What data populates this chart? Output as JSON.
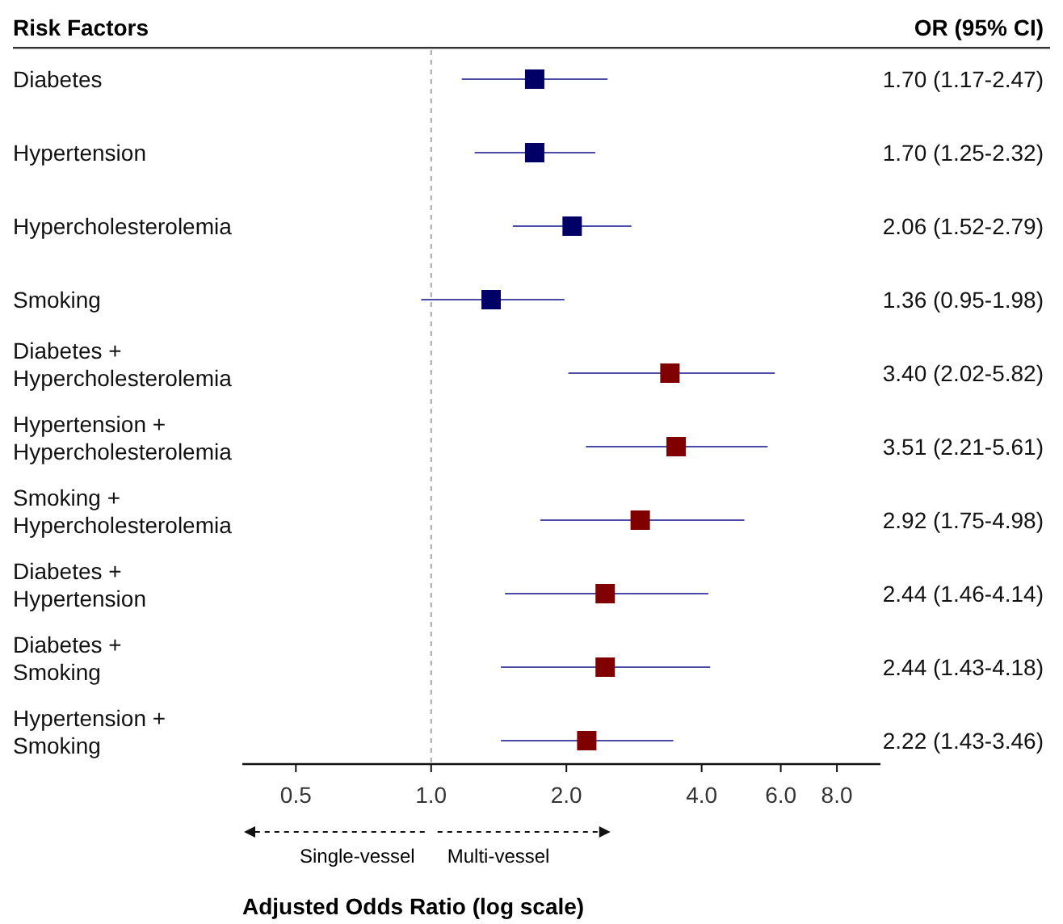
{
  "chart_data": {
    "type": "scatter",
    "orientation": "horizontal",
    "ylabel": "Risk Factors",
    "xlabel": "Adjusted Odds Ratio (log scale)",
    "categories": [
      "Diabetes",
      "Hypertension",
      "Hypercholesterolemia",
      "Smoking",
      "Diabetes + Hypercholesterolemia",
      "Hypertension + Hypercholesterolemia",
      "Smoking + Hypercholesterolemia",
      "Diabetes + Hypertension",
      "Diabetes + Smoking",
      "Hypertension + Smoking"
    ],
    "values": [
      1.7,
      1.7,
      2.06,
      1.36,
      3.4,
      3.51,
      2.92,
      2.44,
      2.44,
      2.22
    ],
    "errors": [
      [
        1.17,
        2.47
      ],
      [
        1.25,
        2.32
      ],
      [
        1.52,
        2.79
      ],
      [
        0.95,
        1.98
      ],
      [
        2.02,
        5.82
      ],
      [
        2.21,
        5.61
      ],
      [
        1.75,
        4.98
      ],
      [
        1.46,
        4.14
      ],
      [
        1.43,
        4.18
      ],
      [
        1.43,
        3.46
      ]
    ],
    "value_labels": [
      "1.70 (1.17-2.47)",
      "1.70 (1.25-2.32)",
      "2.06 (1.52-2.79)",
      "1.36 (0.95-1.98)",
      "3.40 (2.02-5.82)",
      "3.51 (2.21-5.61)",
      "2.92 (1.75-4.98)",
      "2.44 (1.46-4.14)",
      "2.44 (1.43-4.18)",
      "2.22 (1.43-3.46)"
    ],
    "colors": [
      "#000066",
      "#000066",
      "#000066",
      "#000066",
      "#800000",
      "#800000",
      "#800000",
      "#800000",
      "#800000",
      "#800000"
    ],
    "marker": "square",
    "log": "x",
    "grid": false,
    "xlim": [
      0.38,
      10
    ],
    "xticks": [
      0.5,
      {
        "value": 1,
        "label": "1.0"
      },
      {
        "value": 2,
        "label": "2.0"
      },
      {
        "value": 4,
        "label": "4.0"
      },
      {
        "value": 6,
        "label": "6.0"
      },
      {
        "value": 8,
        "label": "8.0"
      }
    ],
    "ref_lines": [
      {
        "axis": "x",
        "value": 1,
        "line_style": "dashed",
        "color": "#aaaaaa"
      }
    ],
    "annotations": [
      "OR (95% CI)",
      "Single-vessel",
      "Multi-vessel"
    ]
  }
}
